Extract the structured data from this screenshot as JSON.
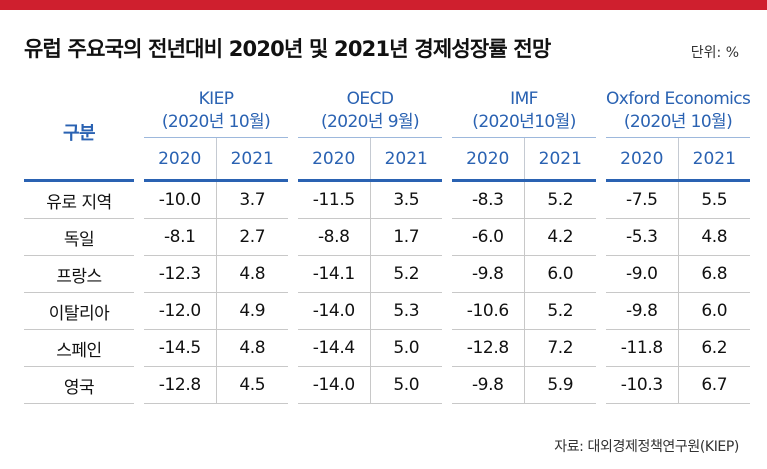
{
  "title": "유럽 주요국의 전년대비 2020년 및 2021년 경제성장률 전망",
  "unit_label": "단위: %",
  "table": {
    "row_header": "구분",
    "orgs": [
      {
        "name": "KIEP",
        "date": "(2020년 10월)"
      },
      {
        "name": "OECD",
        "date": "(2020년 9월)"
      },
      {
        "name": "IMF",
        "date": "(2020년10월)"
      },
      {
        "name": "Oxford Economics",
        "date": "(2020년 10월)"
      }
    ],
    "years": [
      "2020",
      "2021"
    ],
    "rows": [
      {
        "label": "유로 지역",
        "values": [
          "-10.0",
          "3.7",
          "-11.5",
          "3.5",
          "-8.3",
          "5.2",
          "-7.5",
          "5.5"
        ]
      },
      {
        "label": "독일",
        "values": [
          "-8.1",
          "2.7",
          "-8.8",
          "1.7",
          "-6.0",
          "4.2",
          "-5.3",
          "4.8"
        ]
      },
      {
        "label": "프랑스",
        "values": [
          "-12.3",
          "4.8",
          "-14.1",
          "5.2",
          "-9.8",
          "6.0",
          "-9.0",
          "6.8"
        ]
      },
      {
        "label": "이탈리아",
        "values": [
          "-12.0",
          "4.9",
          "-14.0",
          "5.3",
          "-10.6",
          "5.2",
          "-9.8",
          "6.0"
        ]
      },
      {
        "label": "스페인",
        "values": [
          "-14.5",
          "4.8",
          "-14.4",
          "5.0",
          "-12.8",
          "7.2",
          "-11.8",
          "6.2"
        ]
      },
      {
        "label": "영국",
        "values": [
          "-12.8",
          "4.5",
          "-14.0",
          "5.0",
          "-9.8",
          "5.9",
          "-10.3",
          "6.7"
        ]
      }
    ]
  },
  "source": "자료: 대외경제정책연구원(KIEP)",
  "colors": {
    "accent_red": "#cf1f2e",
    "header_blue": "#2a62b2"
  }
}
